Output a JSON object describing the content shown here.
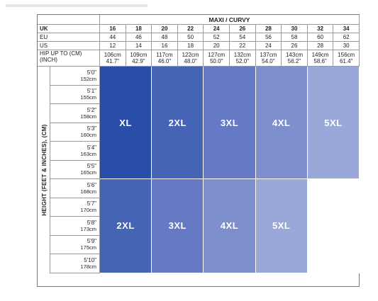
{
  "title": "MAXI / CURVY",
  "row_labels": {
    "uk": "UK",
    "eu": "EU",
    "us": "US",
    "hip": "HIP UP TO (CM)",
    "hip2": "(INCH)"
  },
  "uk": [
    "16",
    "18",
    "20",
    "22",
    "24",
    "26",
    "28",
    "30",
    "32",
    "34"
  ],
  "eu": [
    "44",
    "46",
    "48",
    "50",
    "52",
    "54",
    "56",
    "58",
    "60",
    "62"
  ],
  "us": [
    "12",
    "14",
    "16",
    "18",
    "20",
    "22",
    "24",
    "26",
    "28",
    "30"
  ],
  "hip_cm": [
    "106cm",
    "109cm",
    "117cm",
    "122cm",
    "127cm",
    "132cm",
    "137cm",
    "143cm",
    "149cm",
    "156cm"
  ],
  "hip_in": [
    "41.7\"",
    "42.9\"",
    "46.0\"",
    "48.0\"",
    "50.0\"",
    "52.0\"",
    "54.0\"",
    "56.2\"",
    "58.6\"",
    "61.4\""
  ],
  "height_axis_label": "HEIGHT (FEET & INCHES), (CM)",
  "heights": [
    {
      "ft": "5'0\"",
      "cm": "152cm"
    },
    {
      "ft": "5'1\"",
      "cm": "155cm"
    },
    {
      "ft": "5'2\"",
      "cm": "158cm"
    },
    {
      "ft": "5'3\"",
      "cm": "160cm"
    },
    {
      "ft": "5'4\"",
      "cm": "163cm"
    },
    {
      "ft": "5'5\"",
      "cm": "165cm"
    },
    {
      "ft": "5'6\"",
      "cm": "168cm"
    },
    {
      "ft": "5'7\"",
      "cm": "170cm"
    },
    {
      "ft": "5'8\"",
      "cm": "173cm"
    },
    {
      "ft": "5'9\"",
      "cm": "175cm"
    },
    {
      "ft": "5'10\"",
      "cm": "178cm"
    }
  ],
  "top_blocks": [
    {
      "label": "XL",
      "color": "#2a4ea8"
    },
    {
      "label": "2XL",
      "color": "#4564b6"
    },
    {
      "label": "3XL",
      "color": "#6679c4"
    },
    {
      "label": "4XL",
      "color": "#7e8fcd"
    },
    {
      "label": "5XL",
      "color": "#9aa7d9"
    }
  ],
  "bottom_blocks": [
    {
      "label": "2XL",
      "color": "#4564b6"
    },
    {
      "label": "3XL",
      "color": "#6679c4"
    },
    {
      "label": "4XL",
      "color": "#7e8fcd"
    },
    {
      "label": "5XL",
      "color": "#9aa7d9"
    },
    {
      "label": "",
      "color": "#ffffff"
    }
  ]
}
